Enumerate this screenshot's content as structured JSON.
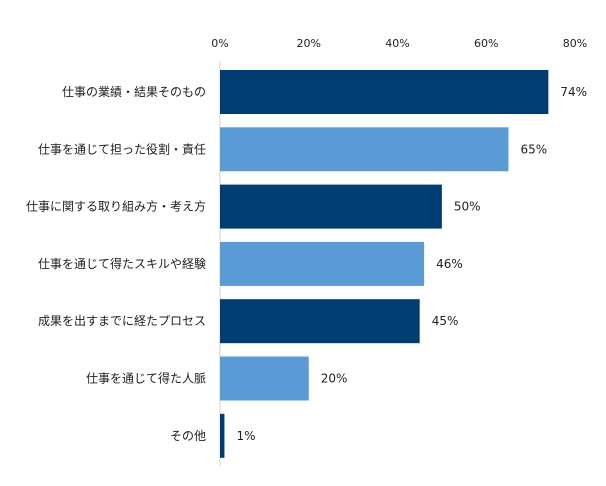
{
  "chart_data": {
    "type": "bar",
    "orientation": "horizontal",
    "categories": [
      "仕事の業績・結果そのもの",
      "仕事を通じて担った役割・責任",
      "仕事に関する取り組み方・考え方",
      "仕事を通じて得たスキルや経験",
      "成果を出すまでに経たプロセス",
      "仕事を通じて得た人脈",
      "その他"
    ],
    "values": [
      74,
      65,
      50,
      46,
      45,
      20,
      1
    ],
    "value_labels": [
      "74%",
      "65%",
      "50%",
      "46%",
      "45%",
      "20%",
      "1%"
    ],
    "bar_colors": [
      "#003d73",
      "#5b9bd5",
      "#003d73",
      "#5b9bd5",
      "#003d73",
      "#5b9bd5",
      "#003d73"
    ],
    "xlim": [
      0,
      80
    ],
    "x_ticks": [
      0,
      20,
      40,
      60,
      80
    ],
    "x_tick_labels": [
      "0%",
      "20%",
      "40%",
      "60%",
      "80%"
    ],
    "x_axis_position": "top",
    "grid": false,
    "title": "",
    "xlabel": "",
    "ylabel": ""
  }
}
